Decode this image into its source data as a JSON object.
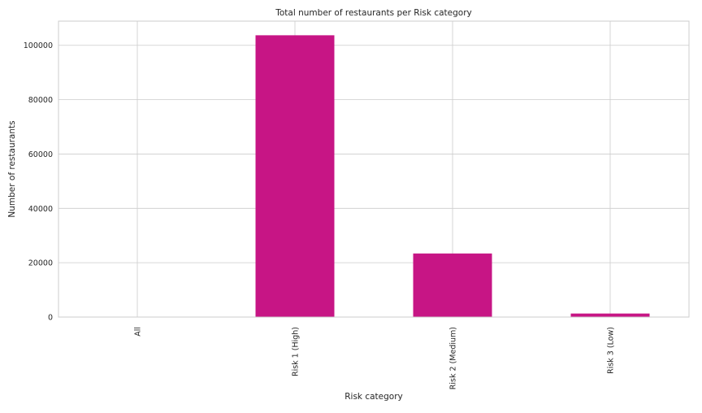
{
  "chart_data": {
    "type": "bar",
    "title": "Total number of restaurants per Risk category",
    "xlabel": "Risk category",
    "ylabel": "Number of restaurants",
    "categories": [
      "All",
      "Risk 1 (High)",
      "Risk 2 (Medium)",
      "Risk 3 (Low)"
    ],
    "values": [
      25,
      103700,
      23400,
      1300
    ],
    "ylim": [
      0,
      108900
    ],
    "yticks": [
      0,
      20000,
      40000,
      60000,
      80000,
      100000
    ],
    "grid": true,
    "legend": "none",
    "colors": {
      "bar": "#c71585",
      "grid": "#cccccc",
      "text": "#262626"
    }
  }
}
